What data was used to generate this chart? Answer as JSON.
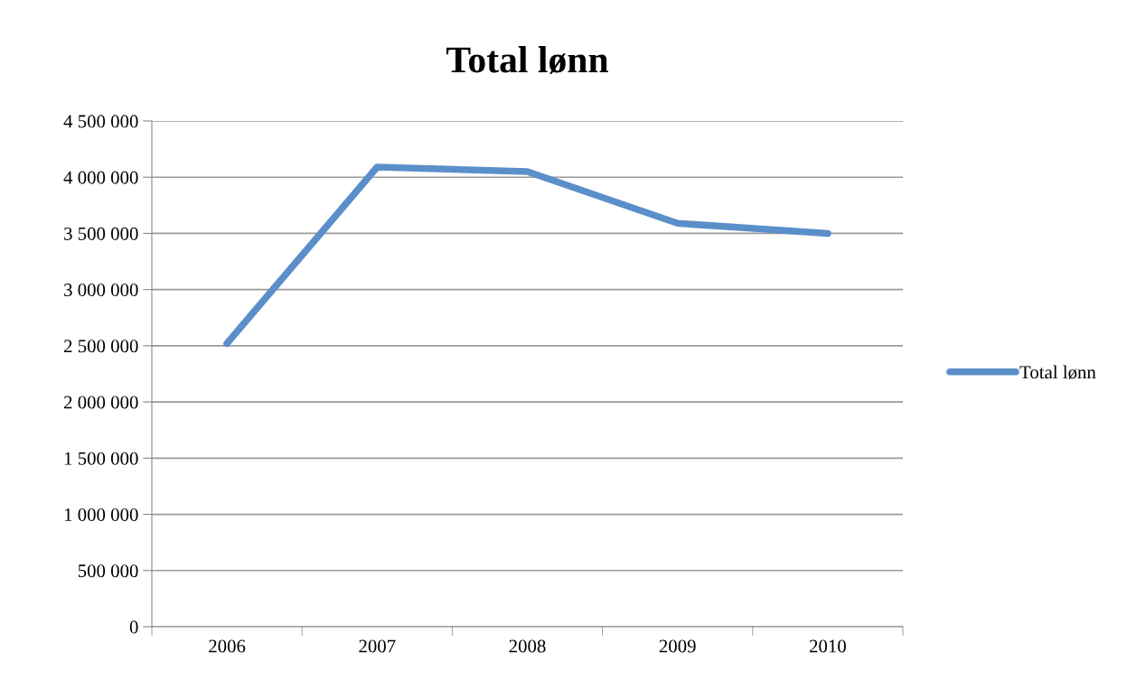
{
  "chart_data": {
    "type": "line",
    "title": "Total lønn",
    "categories": [
      "2006",
      "2007",
      "2008",
      "2009",
      "2010"
    ],
    "series": [
      {
        "name": "Total lønn",
        "color": "#5b8fc9",
        "values": [
          2520000,
          4090000,
          4050000,
          3590000,
          3500000
        ]
      }
    ],
    "ylim": [
      0,
      4500000
    ],
    "yticks": [
      0,
      {
        "value": 500000,
        "label": "500 000"
      },
      {
        "value": 1000000,
        "label": "1 000 000"
      },
      {
        "value": 1500000,
        "label": "1 500 000"
      },
      {
        "value": 2000000,
        "label": "2 000 000"
      },
      {
        "value": 2500000,
        "label": "2 500 000"
      },
      {
        "value": 3000000,
        "label": "3 000 000"
      },
      {
        "value": 3500000,
        "label": "3 500 000"
      },
      {
        "value": 4000000,
        "label": "4 000 000"
      },
      {
        "value": 4500000,
        "label": "4 500 000"
      }
    ],
    "grid": "y",
    "legend": "right",
    "marker": "none",
    "line_style": "solid"
  }
}
